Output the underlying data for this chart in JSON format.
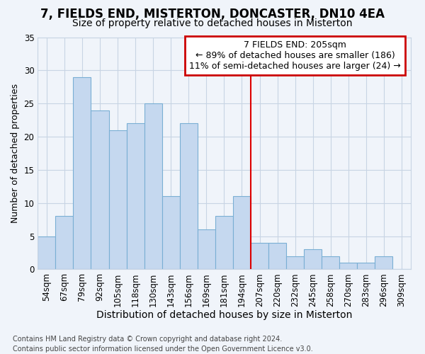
{
  "title": "7, FIELDS END, MISTERTON, DONCASTER, DN10 4EA",
  "subtitle": "Size of property relative to detached houses in Misterton",
  "xlabel": "Distribution of detached houses by size in Misterton",
  "ylabel": "Number of detached properties",
  "categories": [
    "54sqm",
    "67sqm",
    "79sqm",
    "92sqm",
    "105sqm",
    "118sqm",
    "130sqm",
    "143sqm",
    "156sqm",
    "169sqm",
    "181sqm",
    "194sqm",
    "207sqm",
    "220sqm",
    "232sqm",
    "245sqm",
    "258sqm",
    "270sqm",
    "283sqm",
    "296sqm",
    "309sqm"
  ],
  "values": [
    5,
    8,
    29,
    24,
    21,
    22,
    25,
    11,
    22,
    6,
    8,
    11,
    4,
    4,
    2,
    3,
    2,
    1,
    1,
    2,
    0
  ],
  "bar_color": "#c5d8ef",
  "bar_edge_color": "#7aafd4",
  "vline_color": "#dd0000",
  "vline_index": 12,
  "annotation_text": "7 FIELDS END: 205sqm\n← 89% of detached houses are smaller (186)\n11% of semi-detached houses are larger (24) →",
  "ann_box_edge_color": "#cc0000",
  "ann_box_face_color": "#ffffff",
  "ylim": [
    0,
    35
  ],
  "yticks": [
    0,
    5,
    10,
    15,
    20,
    25,
    30,
    35
  ],
  "grid_color": "#c8d4e4",
  "fig_bg_color": "#f0f4fa",
  "ax_bg_color": "#f0f4fa",
  "footer": "Contains HM Land Registry data © Crown copyright and database right 2024.\nContains public sector information licensed under the Open Government Licence v3.0.",
  "title_fontsize": 12,
  "subtitle_fontsize": 10,
  "ylabel_fontsize": 9,
  "xlabel_fontsize": 10,
  "tick_fontsize": 8.5,
  "ann_fontsize": 9,
  "footer_fontsize": 7
}
